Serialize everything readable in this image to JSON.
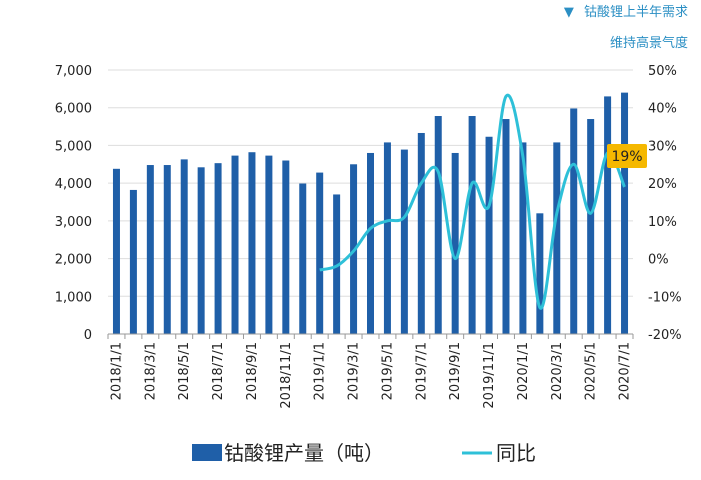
{
  "header": {
    "line1_marker": "▼",
    "line1": "钴酸锂上半年需求",
    "line2": "维持高景气度"
  },
  "annotation": {
    "label": "19%",
    "color": "#f5b800"
  },
  "colors": {
    "bar": "#1f5fa8",
    "line": "#2ec0d8",
    "axis": "#999999",
    "grid": "#dddddd"
  },
  "chart_data": {
    "type": "bar",
    "x": [
      "2018/1/1",
      "2018/2/1",
      "2018/3/1",
      "2018/4/1",
      "2018/5/1",
      "2018/6/1",
      "2018/7/1",
      "2018/8/1",
      "2018/9/1",
      "2018/10/1",
      "2018/11/1",
      "2018/12/1",
      "2019/1/1",
      "2019/2/1",
      "2019/3/1",
      "2019/4/1",
      "2019/5/1",
      "2019/6/1",
      "2019/7/1",
      "2019/8/1",
      "2019/9/1",
      "2019/10/1",
      "2019/11/1",
      "2019/12/1",
      "2020/1/1",
      "2020/2/1",
      "2020/3/1",
      "2020/4/1",
      "2020/5/1",
      "2020/6/1",
      "2020/7/1"
    ],
    "x_tick_labels": [
      "2018/1/1",
      "2018/3/1",
      "2018/5/1",
      "2018/7/1",
      "2018/9/1",
      "2018/11/1",
      "2019/1/1",
      "2019/3/1",
      "2019/5/1",
      "2019/7/1",
      "2019/9/1",
      "2019/11/1",
      "2020/1/1",
      "2020/3/1",
      "2020/5/1",
      "2020/7/1"
    ],
    "series": [
      {
        "name": "钴酸锂产量（吨）",
        "type": "bar",
        "axis": "left",
        "values": [
          4380,
          3820,
          4480,
          4480,
          4630,
          4420,
          4530,
          4730,
          4820,
          4730,
          4600,
          3990,
          4280,
          3700,
          4500,
          4800,
          5080,
          4890,
          5330,
          5780,
          4800,
          5780,
          5230,
          5700,
          5080,
          3200,
          5080,
          5980,
          5700,
          6300,
          6400
        ]
      },
      {
        "name": "同比",
        "type": "line",
        "axis": "right",
        "values": [
          null,
          null,
          null,
          null,
          null,
          null,
          null,
          null,
          null,
          null,
          null,
          null,
          -3,
          -2,
          2,
          8,
          10,
          11,
          20,
          23,
          0,
          20,
          14,
          43,
          27,
          -13,
          12,
          25,
          12,
          28,
          19
        ]
      }
    ],
    "y_left": {
      "min": 0,
      "max": 7000,
      "ticks": [
        "0",
        "1,000",
        "2,000",
        "3,000",
        "4,000",
        "5,000",
        "6,000",
        "7,000"
      ]
    },
    "y_right": {
      "min": -20,
      "max": 50,
      "ticks": [
        "-20%",
        "-10%",
        "0%",
        "10%",
        "20%",
        "30%",
        "40%",
        "50%"
      ]
    },
    "legend_position": "bottom",
    "grid": true
  }
}
